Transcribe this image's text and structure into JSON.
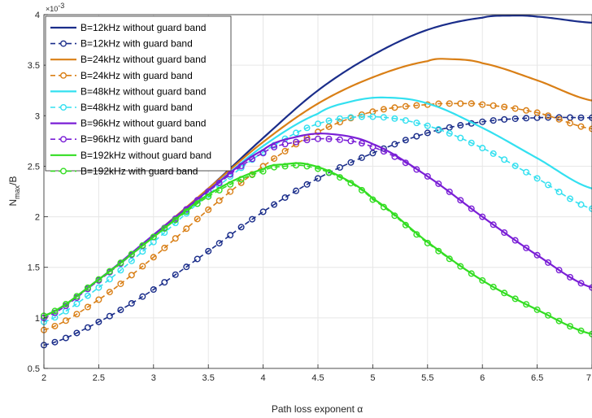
{
  "chart_data": {
    "type": "line",
    "title": "",
    "xlabel": "Path loss exponent α",
    "ylabel_main": "N",
    "ylabel_sub": "max",
    "ylabel_tail": "/B",
    "y_exponent": "×10",
    "y_exponent_power": "-3",
    "xlim": [
      2,
      7
    ],
    "ylim": [
      0.5,
      4
    ],
    "x_ticks": [
      "2",
      "2.5",
      "3",
      "3.5",
      "4",
      "4.5",
      "5",
      "5.5",
      "6",
      "6.5",
      "7"
    ],
    "y_ticks": [
      "0.5",
      "1",
      "1.5",
      "2",
      "2.5",
      "3",
      "3.5",
      "4"
    ],
    "grid": true,
    "legend_position": "top-left",
    "series": [
      {
        "name": "B=12kHz without guard band",
        "color": "#1a2d8a",
        "marker": "none",
        "dashed": false,
        "x": [
          2.0,
          2.5,
          3.0,
          3.5,
          4.0,
          4.5,
          5.0,
          5.5,
          6.0,
          6.25,
          6.5,
          7.0
        ],
        "y": [
          1.02,
          1.38,
          1.82,
          2.28,
          2.78,
          3.25,
          3.6,
          3.85,
          3.97,
          3.99,
          3.98,
          3.92
        ]
      },
      {
        "name": "B=12kHz with guard band",
        "color": "#1a2d8a",
        "marker": "circle",
        "dashed": true,
        "x": [
          2.0,
          2.5,
          3.0,
          3.5,
          4.0,
          4.5,
          5.0,
          5.5,
          6.0,
          6.5,
          7.0
        ],
        "y": [
          0.73,
          0.96,
          1.28,
          1.66,
          2.05,
          2.38,
          2.63,
          2.83,
          2.94,
          2.98,
          2.98
        ]
      },
      {
        "name": "B=24kHz without guard band",
        "color": "#d97f16",
        "marker": "none",
        "dashed": false,
        "x": [
          2.0,
          2.5,
          3.0,
          3.5,
          4.0,
          4.5,
          5.0,
          5.5,
          5.7,
          6.0,
          6.5,
          7.0
        ],
        "y": [
          1.02,
          1.38,
          1.82,
          2.28,
          2.74,
          3.12,
          3.38,
          3.54,
          3.56,
          3.52,
          3.35,
          3.15
        ]
      },
      {
        "name": "B=24kHz with guard band",
        "color": "#d97f16",
        "marker": "circle",
        "dashed": true,
        "x": [
          2.0,
          2.5,
          3.0,
          3.5,
          4.0,
          4.5,
          5.0,
          5.5,
          5.8,
          6.0,
          6.5,
          7.0
        ],
        "y": [
          0.88,
          1.18,
          1.6,
          2.07,
          2.5,
          2.84,
          3.04,
          3.11,
          3.12,
          3.11,
          3.03,
          2.87
        ]
      },
      {
        "name": "B=48kHz without guard band",
        "color": "#33e0f0",
        "marker": "none",
        "dashed": false,
        "x": [
          2.0,
          2.5,
          3.0,
          3.5,
          4.0,
          4.5,
          4.8,
          5.1,
          5.5,
          6.0,
          6.5,
          7.0
        ],
        "y": [
          1.02,
          1.38,
          1.82,
          2.26,
          2.7,
          3.02,
          3.14,
          3.18,
          3.12,
          2.88,
          2.58,
          2.28
        ]
      },
      {
        "name": "B=48kHz with guard band",
        "color": "#33e0f0",
        "marker": "circle",
        "dashed": true,
        "x": [
          2.0,
          2.5,
          3.0,
          3.5,
          4.0,
          4.5,
          5.0,
          5.5,
          6.0,
          6.5,
          7.0
        ],
        "y": [
          0.96,
          1.3,
          1.75,
          2.22,
          2.64,
          2.92,
          2.99,
          2.9,
          2.68,
          2.38,
          2.08
        ]
      },
      {
        "name": "B=96kHz without guard band",
        "color": "#7a1fd6",
        "marker": "none",
        "dashed": false,
        "x": [
          2.0,
          2.5,
          3.0,
          3.5,
          4.0,
          4.3,
          4.6,
          5.0,
          5.5,
          6.0,
          6.5,
          7.0
        ],
        "y": [
          1.02,
          1.38,
          1.82,
          2.26,
          2.66,
          2.79,
          2.82,
          2.72,
          2.4,
          2.0,
          1.62,
          1.3
        ]
      },
      {
        "name": "B=96kHz with guard band",
        "color": "#7a1fd6",
        "marker": "circle",
        "dashed": true,
        "x": [
          2.0,
          2.5,
          3.0,
          3.5,
          4.0,
          4.3,
          4.6,
          5.0,
          5.5,
          6.0,
          6.5,
          7.0
        ],
        "y": [
          1.0,
          1.37,
          1.8,
          2.25,
          2.63,
          2.74,
          2.77,
          2.69,
          2.4,
          2.0,
          1.62,
          1.3
        ]
      },
      {
        "name": "B=192kHz without guard band",
        "color": "#33dd22",
        "marker": "none",
        "dashed": false,
        "x": [
          2.0,
          2.5,
          3.0,
          3.5,
          4.0,
          4.2,
          4.4,
          4.7,
          5.0,
          5.5,
          6.0,
          6.5,
          7.0
        ],
        "y": [
          1.02,
          1.38,
          1.8,
          2.22,
          2.47,
          2.52,
          2.52,
          2.4,
          2.18,
          1.75,
          1.37,
          1.08,
          0.84
        ]
      },
      {
        "name": "B=192kHz with guard band",
        "color": "#33dd22",
        "marker": "circle",
        "dashed": true,
        "x": [
          2.0,
          2.5,
          3.0,
          3.5,
          4.0,
          4.2,
          4.4,
          4.7,
          5.0,
          5.5,
          6.0,
          6.5,
          7.0
        ],
        "y": [
          1.02,
          1.38,
          1.8,
          2.2,
          2.45,
          2.5,
          2.5,
          2.39,
          2.17,
          1.74,
          1.37,
          1.08,
          0.84
        ]
      }
    ]
  }
}
